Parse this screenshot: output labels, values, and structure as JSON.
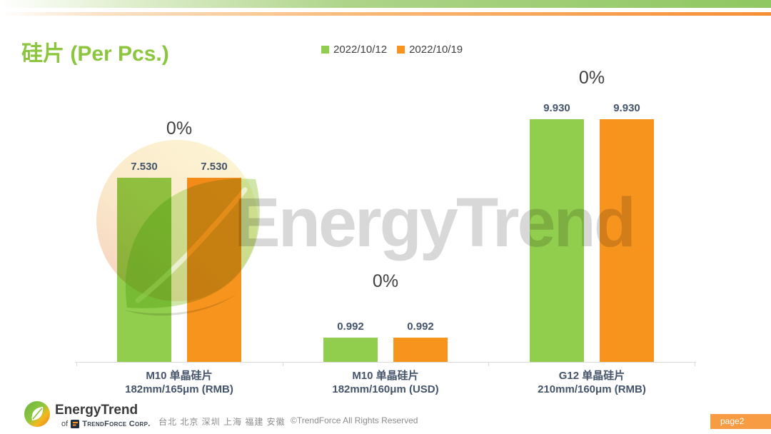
{
  "slide": {
    "title": "硅片 (Per Pcs.)",
    "watermark_text": "EnergyTrend",
    "colors": {
      "title_green": "#8cc63e",
      "series_green": "#92ce4e",
      "series_orange": "#f7941e",
      "axis_gray": "#d9d9d9",
      "value_label": "#44546a",
      "pct_label": "#404040",
      "watermark_gray": "#d8d8d8",
      "page_badge_bg": "#f79c42"
    }
  },
  "chart_data": {
    "type": "bar",
    "title": "硅片 (Per Pcs.)",
    "legend_position": "top-center",
    "grid": false,
    "ylim": [
      0,
      12
    ],
    "decimals": 3,
    "categories": [
      {
        "line1": "M10 单晶硅片",
        "line2": "182mm/165μm (RMB)"
      },
      {
        "line1": "M10 单晶硅片",
        "line2": "182mm/160μm (USD)"
      },
      {
        "line1": "G12 单晶硅片",
        "line2": "210mm/160μm  (RMB)"
      }
    ],
    "series": [
      {
        "name": "2022/10/12",
        "color": "#92ce4e",
        "values": [
          7.53,
          0.992,
          9.93
        ]
      },
      {
        "name": "2022/10/19",
        "color": "#f7941e",
        "values": [
          7.53,
          0.992,
          9.93
        ]
      }
    ],
    "change_labels": [
      "0%",
      "0%",
      "0%"
    ],
    "pct_label_y": [
      166,
      380,
      95
    ]
  },
  "footer": {
    "logo_name": "EnergyTrend",
    "logo_sub_prefix": "of",
    "logo_sub": "TrendForce Corp.",
    "cities": "台北 北京 深圳 上海 福建 安徽",
    "copyright": "©TrendForce All Rights Reserved",
    "page_label": "page2"
  }
}
